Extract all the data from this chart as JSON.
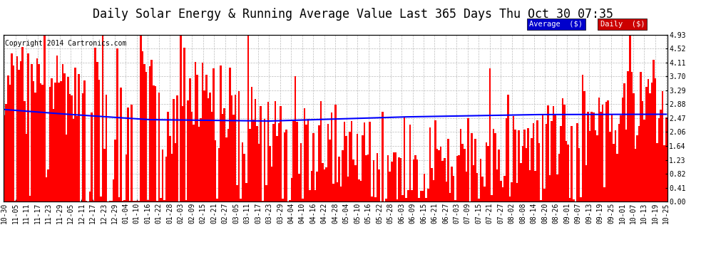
{
  "title": "Daily Solar Energy & Running Average Value Last 365 Days Thu Oct 30 07:35",
  "copyright": "Copyright 2014 Cartronics.com",
  "ylabel_right": [
    "4.93",
    "4.52",
    "4.11",
    "3.70",
    "3.29",
    "2.88",
    "2.47",
    "2.06",
    "1.64",
    "1.23",
    "0.82",
    "0.41",
    "0.00"
  ],
  "ytick_values": [
    4.93,
    4.52,
    4.11,
    3.7,
    3.29,
    2.88,
    2.47,
    2.06,
    1.64,
    1.23,
    0.82,
    0.41,
    0.0
  ],
  "ylim": [
    0,
    4.93
  ],
  "bar_color": "#FF0000",
  "avg_color": "#0000FF",
  "background_color": "#FFFFFF",
  "plot_bg_color": "#FFFFFF",
  "grid_color": "#BBBBBB",
  "legend_avg_bg": "#0000CC",
  "legend_daily_bg": "#CC0000",
  "legend_avg_text": "Average  ($)",
  "legend_daily_text": "Daily  ($)",
  "title_fontsize": 12,
  "copyright_fontsize": 7,
  "tick_fontsize": 7,
  "x_labels": [
    "10-30",
    "11-05",
    "11-11",
    "11-17",
    "11-23",
    "11-29",
    "12-05",
    "12-11",
    "12-17",
    "12-23",
    "12-29",
    "01-04",
    "01-10",
    "01-16",
    "01-22",
    "01-28",
    "02-03",
    "02-09",
    "02-15",
    "02-21",
    "02-27",
    "03-05",
    "03-11",
    "03-17",
    "03-23",
    "03-29",
    "04-04",
    "04-10",
    "04-16",
    "04-22",
    "04-28",
    "05-04",
    "05-10",
    "05-16",
    "05-22",
    "05-28",
    "06-03",
    "06-09",
    "06-15",
    "06-21",
    "06-27",
    "07-03",
    "07-09",
    "07-15",
    "07-21",
    "07-27",
    "08-02",
    "08-08",
    "08-14",
    "08-20",
    "08-26",
    "09-01",
    "09-07",
    "09-13",
    "09-19",
    "09-25",
    "10-01",
    "10-07",
    "10-13",
    "10-19",
    "10-25"
  ],
  "avg_ctrl_t": [
    0.0,
    0.08,
    0.22,
    0.4,
    0.6,
    0.8,
    1.0
  ],
  "avg_ctrl_v": [
    2.72,
    2.6,
    2.42,
    2.38,
    2.5,
    2.57,
    2.58
  ]
}
